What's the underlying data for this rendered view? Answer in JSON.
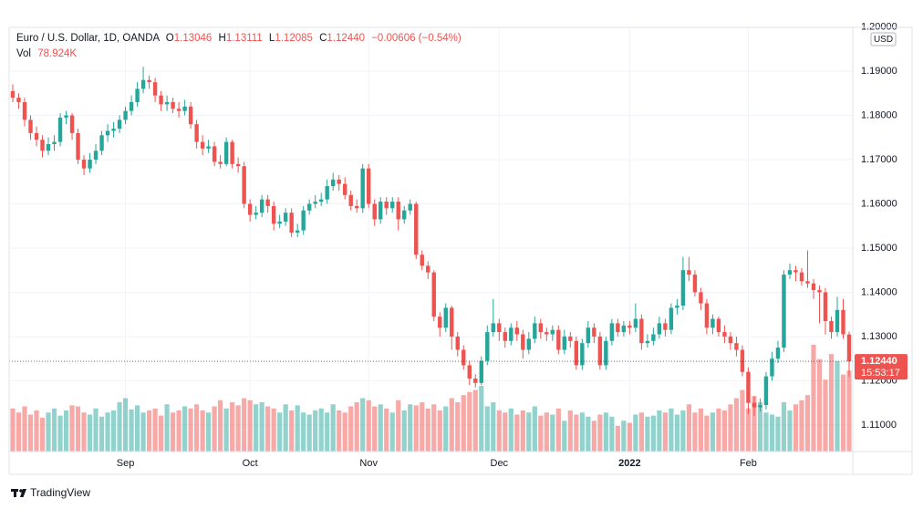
{
  "chart_data": {
    "type": "candlestick",
    "header": {
      "items": [
        {
          "key": "O",
          "value": "1.13046"
        },
        {
          "key": "H",
          "value": "1.13111"
        },
        {
          "key": "L",
          "value": "1.12085"
        },
        {
          "key": "C",
          "value": "1.12440"
        }
      ],
      "change": "−0.00606 (−0.54%)",
      "volume_title": "Vol",
      "volume_last": "78.924K"
    },
    "currency": "USD",
    "countdown": "15:53:17",
    "brand": "TradingView",
    "up_color": "#26a69a",
    "down_color": "#ef5350",
    "categories": [
      null,
      null,
      null,
      null,
      null,
      null,
      null,
      null,
      null,
      null,
      null,
      null,
      null,
      null,
      null,
      null,
      null,
      null,
      null,
      "Sep",
      null,
      null,
      null,
      null,
      null,
      null,
      null,
      null,
      null,
      null,
      null,
      null,
      null,
      null,
      null,
      null,
      null,
      null,
      null,
      null,
      "Oct",
      null,
      null,
      null,
      null,
      null,
      null,
      null,
      null,
      null,
      null,
      null,
      null,
      null,
      null,
      null,
      null,
      null,
      null,
      null,
      "Nov",
      null,
      null,
      null,
      null,
      null,
      null,
      null,
      null,
      null,
      null,
      null,
      null,
      null,
      null,
      null,
      null,
      null,
      null,
      null,
      null,
      null,
      "Dec",
      null,
      null,
      null,
      null,
      null,
      null,
      null,
      null,
      null,
      null,
      null,
      null,
      null,
      null,
      null,
      null,
      null,
      null,
      null,
      null,
      null,
      "2022",
      null,
      null,
      null,
      null,
      null,
      null,
      null,
      null,
      null,
      null,
      null,
      null,
      null,
      null,
      null,
      null,
      null,
      null,
      null,
      "Feb",
      null,
      null,
      null,
      null,
      null,
      null,
      null,
      null,
      null,
      null,
      null,
      null,
      null,
      null,
      null,
      null,
      null
    ],
    "series": [
      {
        "name": "Euro / U.S. Dollar, 1D, OANDA",
        "open": [
          1.1855,
          1.184,
          1.183,
          1.179,
          1.176,
          1.1745,
          1.172,
          1.1735,
          1.174,
          1.1795,
          1.18,
          1.176,
          1.17,
          1.168,
          1.17,
          1.172,
          1.1755,
          1.1765,
          1.177,
          1.179,
          1.181,
          1.183,
          1.186,
          1.188,
          1.1875,
          1.1845,
          1.1825,
          1.183,
          1.1815,
          1.181,
          1.182,
          1.178,
          1.174,
          1.1725,
          1.173,
          1.1695,
          1.169,
          1.174,
          1.169,
          1.1685,
          1.16,
          1.1575,
          1.158,
          1.161,
          1.1595,
          1.1555,
          1.156,
          1.158,
          1.1535,
          1.154,
          1.1585,
          1.16,
          1.1605,
          1.161,
          1.164,
          1.1655,
          1.1645,
          1.162,
          1.1595,
          1.159,
          1.168,
          1.16,
          1.1565,
          1.1605,
          1.159,
          1.1605,
          1.1565,
          1.1585,
          1.16,
          1.1485,
          1.146,
          1.1445,
          1.1345,
          1.132,
          1.1365,
          1.13,
          1.127,
          1.1235,
          1.1205,
          1.1195,
          1.1245,
          1.131,
          1.133,
          1.131,
          1.129,
          1.132,
          1.1305,
          1.127,
          1.1295,
          1.133,
          1.131,
          1.1305,
          1.1315,
          1.127,
          1.13,
          1.129,
          1.1235,
          1.1285,
          1.132,
          1.13,
          1.1235,
          1.129,
          1.133,
          1.131,
          1.1325,
          1.132,
          1.134,
          1.1285,
          1.129,
          1.1305,
          1.133,
          1.1315,
          1.1365,
          1.137,
          1.145,
          1.144,
          1.14,
          1.1375,
          1.132,
          1.134,
          1.131,
          1.13,
          1.1285,
          1.127,
          1.122,
          1.115,
          1.114,
          1.1145,
          1.121,
          1.125,
          1.1275,
          1.144,
          1.145,
          1.1445,
          1.1425,
          1.142,
          1.1405,
          1.14,
          1.1335,
          1.131,
          1.136,
          1.13046
        ],
        "high": [
          1.187,
          1.185,
          1.184,
          1.18,
          1.1775,
          1.1755,
          1.175,
          1.1755,
          1.1805,
          1.181,
          1.1805,
          1.177,
          1.171,
          1.1715,
          1.1735,
          1.1765,
          1.178,
          1.1785,
          1.18,
          1.182,
          1.1845,
          1.1875,
          1.191,
          1.189,
          1.1885,
          1.1855,
          1.1845,
          1.184,
          1.183,
          1.1835,
          1.183,
          1.179,
          1.1755,
          1.1745,
          1.174,
          1.171,
          1.175,
          1.1745,
          1.1705,
          1.1695,
          1.161,
          1.1595,
          1.162,
          1.162,
          1.1605,
          1.1575,
          1.159,
          1.159,
          1.1555,
          1.1595,
          1.161,
          1.162,
          1.1625,
          1.1655,
          1.167,
          1.1665,
          1.166,
          1.163,
          1.161,
          1.169,
          1.169,
          1.161,
          1.1615,
          1.1615,
          1.1615,
          1.1615,
          1.1595,
          1.161,
          1.1605,
          1.1495,
          1.147,
          1.145,
          1.1355,
          1.1375,
          1.137,
          1.131,
          1.128,
          1.1245,
          1.1215,
          1.1255,
          1.1325,
          1.1385,
          1.134,
          1.132,
          1.133,
          1.1335,
          1.1315,
          1.131,
          1.1345,
          1.134,
          1.132,
          1.1325,
          1.1325,
          1.1315,
          1.131,
          1.13,
          1.1295,
          1.1335,
          1.133,
          1.131,
          1.13,
          1.134,
          1.134,
          1.1335,
          1.1335,
          1.1375,
          1.135,
          1.1305,
          1.132,
          1.1345,
          1.134,
          1.1375,
          1.1385,
          1.148,
          1.148,
          1.145,
          1.141,
          1.1385,
          1.135,
          1.1345,
          1.1325,
          1.131,
          1.13,
          1.128,
          1.123,
          1.1165,
          1.116,
          1.122,
          1.1265,
          1.129,
          1.145,
          1.1465,
          1.146,
          1.1455,
          1.1495,
          1.143,
          1.1415,
          1.141,
          1.1345,
          1.139,
          1.1385,
          1.13111
        ],
        "low": [
          1.183,
          1.1815,
          1.1775,
          1.1745,
          1.173,
          1.1705,
          1.171,
          1.172,
          1.173,
          1.178,
          1.1745,
          1.169,
          1.1665,
          1.167,
          1.169,
          1.171,
          1.174,
          1.175,
          1.176,
          1.178,
          1.18,
          1.182,
          1.185,
          1.186,
          1.183,
          1.181,
          1.181,
          1.1805,
          1.1795,
          1.18,
          1.177,
          1.1725,
          1.171,
          1.1715,
          1.1685,
          1.168,
          1.1685,
          1.168,
          1.167,
          1.159,
          1.156,
          1.1565,
          1.157,
          1.158,
          1.154,
          1.1545,
          1.155,
          1.1525,
          1.1525,
          1.153,
          1.1575,
          1.159,
          1.1595,
          1.16,
          1.163,
          1.163,
          1.161,
          1.1585,
          1.158,
          1.158,
          1.159,
          1.155,
          1.1555,
          1.1575,
          1.158,
          1.154,
          1.1555,
          1.1575,
          1.1475,
          1.145,
          1.143,
          1.1335,
          1.13,
          1.131,
          1.127,
          1.1255,
          1.1225,
          1.119,
          1.1185,
          1.119,
          1.1235,
          1.13,
          1.129,
          1.1275,
          1.128,
          1.129,
          1.125,
          1.126,
          1.1285,
          1.1295,
          1.129,
          1.129,
          1.126,
          1.126,
          1.1275,
          1.1225,
          1.1225,
          1.1275,
          1.1285,
          1.1225,
          1.1225,
          1.128,
          1.13,
          1.13,
          1.1305,
          1.131,
          1.127,
          1.1275,
          1.128,
          1.1295,
          1.13,
          1.1305,
          1.135,
          1.136,
          1.1425,
          1.139,
          1.136,
          1.1305,
          1.1305,
          1.13,
          1.1285,
          1.127,
          1.1255,
          1.121,
          1.1125,
          1.112,
          1.113,
          1.1135,
          1.12,
          1.124,
          1.1265,
          1.143,
          1.1425,
          1.1415,
          1.141,
          1.1385,
          1.133,
          1.1305,
          1.1295,
          1.13,
          1.1295,
          1.12085
        ],
        "close": [
          1.184,
          1.183,
          1.179,
          1.176,
          1.1745,
          1.172,
          1.1735,
          1.174,
          1.1795,
          1.18,
          1.176,
          1.17,
          1.168,
          1.17,
          1.172,
          1.1755,
          1.1765,
          1.177,
          1.179,
          1.181,
          1.183,
          1.186,
          1.188,
          1.1875,
          1.1845,
          1.1825,
          1.183,
          1.1815,
          1.181,
          1.182,
          1.178,
          1.174,
          1.1725,
          1.173,
          1.1695,
          1.169,
          1.174,
          1.169,
          1.1685,
          1.16,
          1.1575,
          1.158,
          1.161,
          1.1595,
          1.1555,
          1.156,
          1.158,
          1.1535,
          1.154,
          1.1585,
          1.16,
          1.1605,
          1.161,
          1.164,
          1.1655,
          1.1645,
          1.162,
          1.1595,
          1.159,
          1.168,
          1.16,
          1.1565,
          1.1605,
          1.159,
          1.1605,
          1.1565,
          1.1585,
          1.16,
          1.1485,
          1.146,
          1.1445,
          1.1345,
          1.132,
          1.1365,
          1.13,
          1.127,
          1.1235,
          1.1205,
          1.1195,
          1.1245,
          1.131,
          1.133,
          1.131,
          1.129,
          1.132,
          1.1305,
          1.127,
          1.1295,
          1.133,
          1.131,
          1.1305,
          1.1315,
          1.127,
          1.13,
          1.129,
          1.1235,
          1.1285,
          1.132,
          1.13,
          1.1235,
          1.129,
          1.133,
          1.131,
          1.1325,
          1.132,
          1.134,
          1.1285,
          1.129,
          1.1305,
          1.133,
          1.1315,
          1.1365,
          1.137,
          1.145,
          1.144,
          1.14,
          1.1375,
          1.132,
          1.134,
          1.131,
          1.13,
          1.1285,
          1.127,
          1.122,
          1.115,
          1.114,
          1.1145,
          1.121,
          1.125,
          1.1275,
          1.144,
          1.145,
          1.1445,
          1.1425,
          1.142,
          1.1405,
          1.14,
          1.1335,
          1.131,
          1.136,
          1.1305,
          1.1244
        ],
        "volume": [
          42,
          38,
          44,
          36,
          40,
          33,
          38,
          42,
          35,
          40,
          45,
          44,
          38,
          36,
          42,
          34,
          38,
          40,
          48,
          52,
          41,
          45,
          38,
          40,
          42,
          35,
          46,
          38,
          40,
          44,
          42,
          46,
          40,
          38,
          44,
          50,
          42,
          48,
          45,
          52,
          50,
          46,
          48,
          44,
          42,
          38,
          46,
          40,
          45,
          38,
          36,
          40,
          42,
          38,
          46,
          40,
          38,
          44,
          48,
          52,
          50,
          44,
          46,
          42,
          38,
          50,
          40,
          46,
          45,
          48,
          42,
          46,
          40,
          44,
          52,
          48,
          55,
          58,
          60,
          64,
          44,
          48,
          40,
          38,
          42,
          36,
          40,
          38,
          44,
          35,
          38,
          36,
          42,
          30,
          40,
          36,
          38,
          34,
          30,
          36,
          38,
          34,
          25,
          30,
          28,
          36,
          38,
          34,
          35,
          40,
          38,
          42,
          36,
          40,
          46,
          38,
          42,
          35,
          38,
          42,
          40,
          46,
          52,
          60,
          42,
          54,
          48,
          38,
          36,
          34,
          48,
          40,
          46,
          50,
          55,
          104,
          90,
          70,
          95,
          88,
          75,
          78.924
        ]
      }
    ],
    "ylim": [
      1.104,
      1.1999
    ],
    "yticks": [
      {
        "value": 1.11,
        "label": "1.11000"
      },
      {
        "value": 1.12,
        "label": "1.12000"
      },
      {
        "value": 1.13,
        "label": "1.13000"
      },
      {
        "value": 1.14,
        "label": "1.14000"
      },
      {
        "value": 1.15,
        "label": "1.15000"
      },
      {
        "value": 1.16,
        "label": "1.16000"
      },
      {
        "value": 1.17,
        "label": "1.17000"
      },
      {
        "value": 1.18,
        "label": "1.18000"
      },
      {
        "value": 1.19,
        "label": "1.19000"
      },
      {
        "value": 1.2,
        "label": "1.20000"
      }
    ],
    "grid": true
  }
}
